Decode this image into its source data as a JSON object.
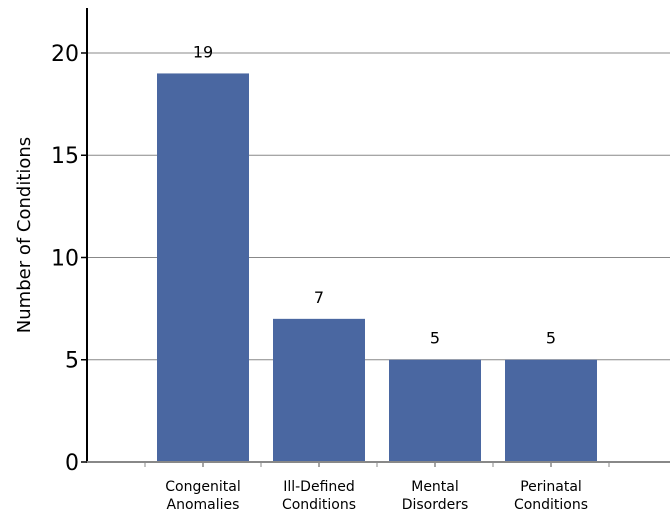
{
  "chart_data": {
    "type": "bar",
    "title": "",
    "xlabel": "",
    "ylabel": "Number of Conditions",
    "categories": [
      [
        "Congenital",
        "Anomalies"
      ],
      [
        "Ill-Defined",
        "Conditions"
      ],
      [
        "Mental",
        "Disorders"
      ],
      [
        "Perinatal",
        "Conditions"
      ]
    ],
    "values": [
      19,
      7,
      5,
      5
    ],
    "data_labels": [
      "19",
      "7",
      "5",
      "5"
    ],
    "y_ticks": [
      0,
      5,
      10,
      15,
      20
    ],
    "y_tick_labels": [
      "0",
      "5",
      "10",
      "15",
      "20"
    ],
    "ylim": [
      0,
      22.2
    ],
    "grid": true,
    "bar_color": "#4a67a1",
    "grid_color": "#888888"
  }
}
